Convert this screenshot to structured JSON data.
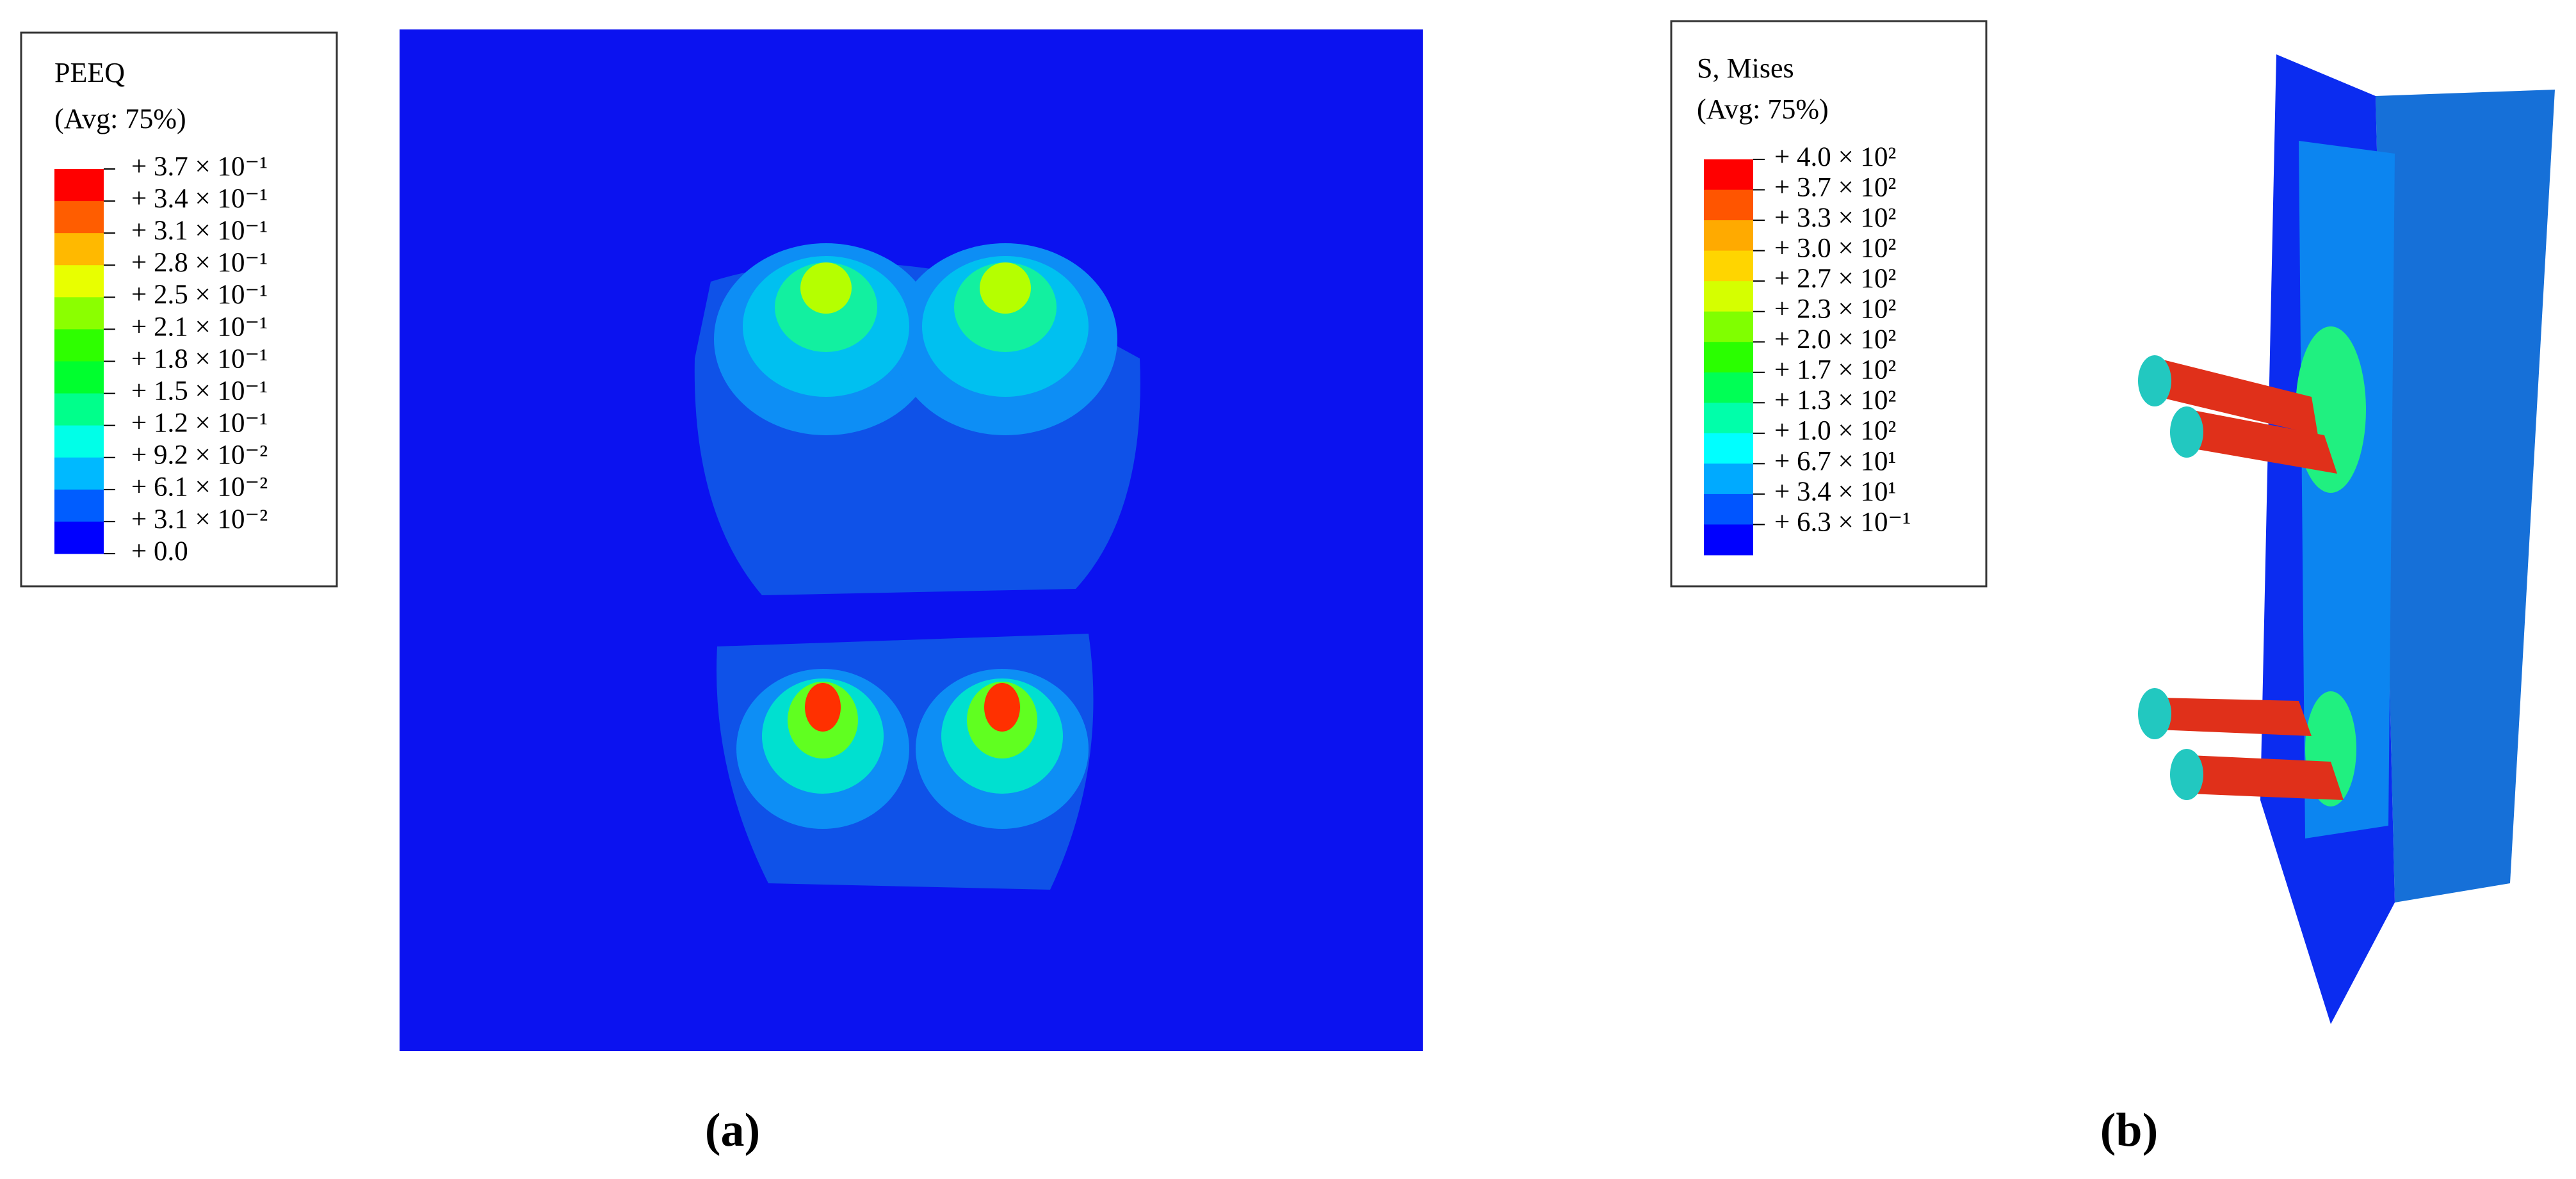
{
  "panels": [
    {
      "legend": {
        "title": "PEEQ",
        "subtitle": "(Avg: 75%)",
        "labels": [
          "+ 3.7 × 10⁻¹",
          "+ 3.4 × 10⁻¹",
          "+ 3.1 × 10⁻¹",
          "+ 2.8 × 10⁻¹",
          "+ 2.5 × 10⁻¹",
          "+ 2.1 × 10⁻¹",
          "+ 1.8 × 10⁻¹",
          "+ 1.5 × 10⁻¹",
          "+ 1.2 × 10⁻¹",
          "+ 9.2 × 10⁻²",
          "+ 6.1 × 10⁻²",
          "+ 3.1 × 10⁻²",
          "+ 0.0"
        ],
        "colors": [
          "#ff0000",
          "#ff5d00",
          "#ffb900",
          "#e8ff00",
          "#8bff00",
          "#2eff00",
          "#00ff2e",
          "#00ff8b",
          "#00ffe8",
          "#00b9ff",
          "#005dff",
          "#0000ff"
        ]
      },
      "caption": "(a)"
    },
    {
      "legend": {
        "title": "S, Mises",
        "subtitle": "(Avg: 75%)",
        "labels": [
          "+ 4.0 × 10²",
          "+ 3.7 × 10²",
          "+ 3.3 × 10²",
          "+ 3.0 × 10²",
          "+ 2.7 × 10²",
          "+ 2.3 × 10²",
          "+ 2.0 × 10²",
          "+ 1.7 × 10²",
          "+ 1.3 × 10²",
          "+ 1.0 × 10²",
          "+ 6.7 × 10¹",
          "+ 3.4 × 10¹",
          "+ 6.3 × 10⁻¹"
        ],
        "colors": [
          "#ff0000",
          "#ff5500",
          "#ffaa00",
          "#ffd500",
          "#d5ff00",
          "#80ff00",
          "#2aff00",
          "#00ff55",
          "#00ffaa",
          "#00ffff",
          "#00aaff",
          "#0055ff",
          "#0000ff"
        ]
      },
      "caption": "(b)"
    }
  ]
}
